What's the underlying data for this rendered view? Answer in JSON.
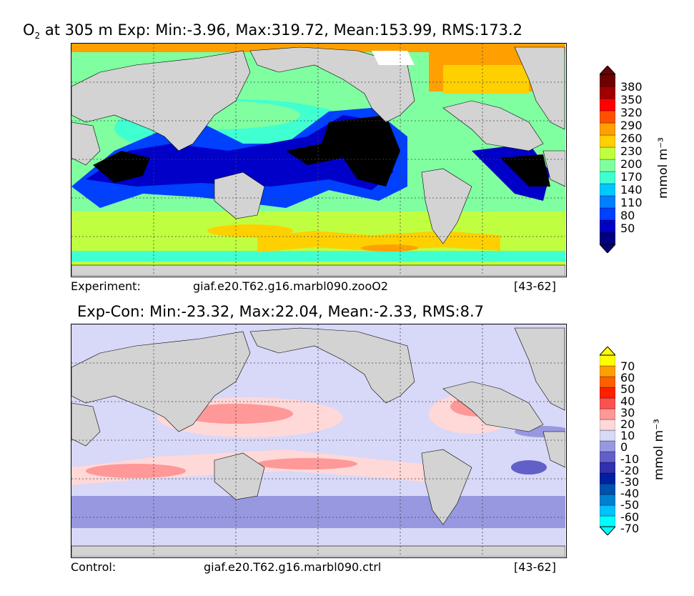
{
  "panel_top": {
    "title_prefix": "O",
    "title_subscript": "2",
    "title_rest": " at 305 m Exp: Min:-3.96, Max:319.72, Mean:153.99, RMS:173.2",
    "footer_left": "Experiment:",
    "footer_center": "giaf.e20.T62.g16.marbl090.zooO2",
    "footer_right": "[43-62]",
    "colorbar_unit": "mmol m⁻³",
    "colorbar_ticks": [
      "380",
      "350",
      "320",
      "290",
      "260",
      "230",
      "200",
      "170",
      "140",
      "110",
      "80",
      "50"
    ],
    "colorbar_colors": [
      "#000080",
      "#0000c8",
      "#0040ff",
      "#0080ff",
      "#00c8ff",
      "#40ffd0",
      "#80ffa0",
      "#c0ff40",
      "#ffd000",
      "#ffa000",
      "#ff5000",
      "#ff0000",
      "#a00000",
      "#700000"
    ]
  },
  "panel_bottom": {
    "title": "Exp-Con: Min:-23.32, Max:22.04, Mean:-2.33, RMS:8.7",
    "footer_left": "Control:",
    "footer_center": "giaf.e20.T62.g16.marbl090.ctrl",
    "footer_right": "[43-62]",
    "colorbar_unit": "mmol m⁻³",
    "colorbar_ticks": [
      "70",
      "60",
      "50",
      "40",
      "30",
      "20",
      "10",
      "0",
      "-10",
      "-20",
      "-30",
      "-40",
      "-50",
      "-60",
      "-70"
    ],
    "colorbar_colors": [
      "#00ffff",
      "#00c0ff",
      "#0080d0",
      "#0050b0",
      "#0020a0",
      "#3030b0",
      "#6060c8",
      "#9898e0",
      "#d8d8f8",
      "#ffd8d8",
      "#ff9898",
      "#ff5050",
      "#ff2000",
      "#ff6000",
      "#ffa000",
      "#ffff00"
    ]
  }
}
